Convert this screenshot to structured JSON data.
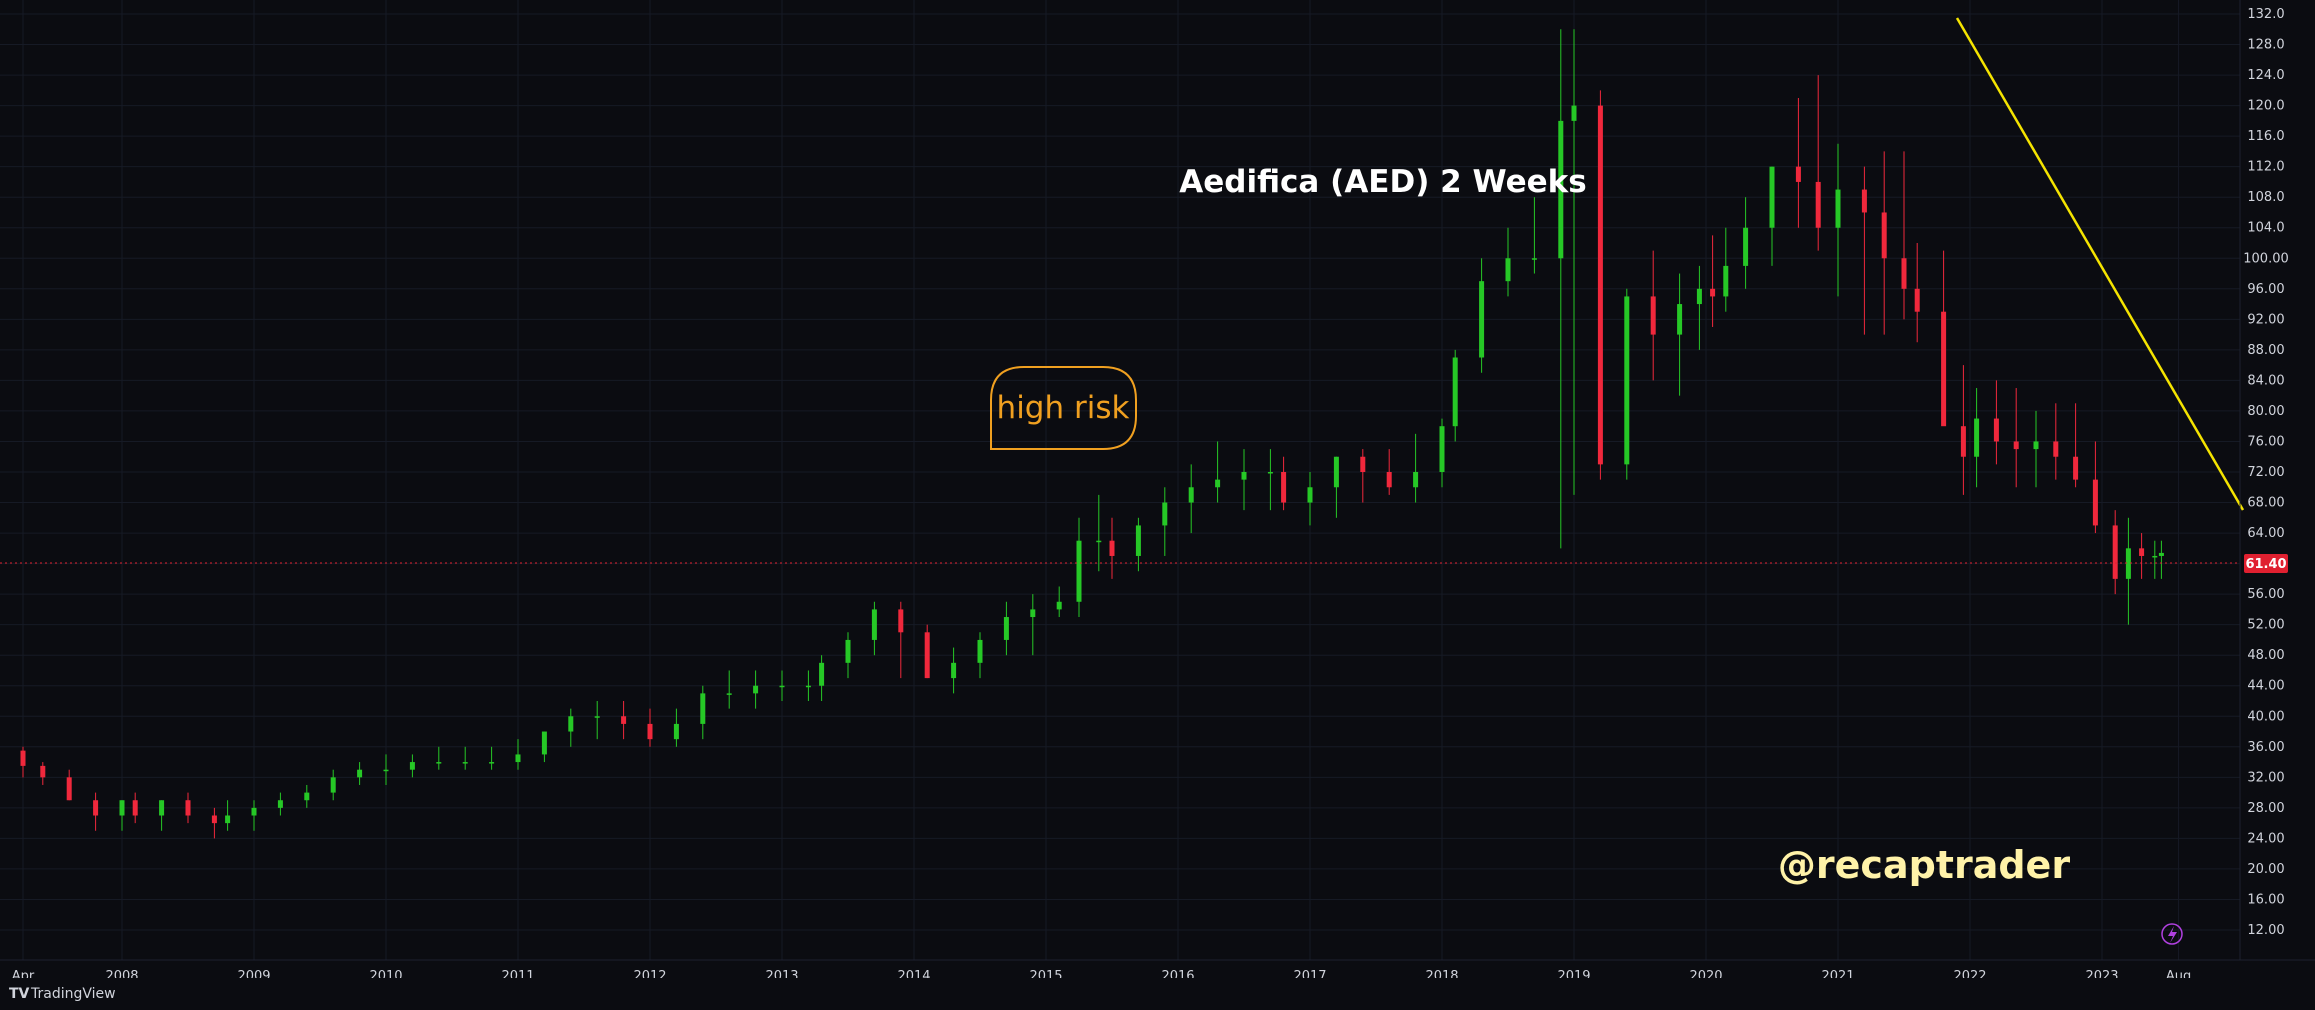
{
  "chart_data": {
    "type": "candlestick",
    "title": "Aedifica (AED) 2 Weeks",
    "ylim": [
      12,
      132
    ],
    "y_ticks": [
      "132.0",
      "128.0",
      "124.0",
      "120.0",
      "116.0",
      "112.0",
      "108.0",
      "104.0",
      "100.00",
      "96.00",
      "92.00",
      "88.00",
      "84.00",
      "80.00",
      "76.00",
      "72.00",
      "68.00",
      "64.00",
      "60.00",
      "56.00",
      "52.00",
      "48.00",
      "44.00",
      "40.00",
      "36.00",
      "32.00",
      "28.00",
      "24.00",
      "20.00",
      "16.00",
      "12.00"
    ],
    "x_ticks": [
      {
        "label": "Apr",
        "year": 2007.25
      },
      {
        "label": "2008",
        "year": 2008
      },
      {
        "label": "2009",
        "year": 2009
      },
      {
        "label": "2010",
        "year": 2010
      },
      {
        "label": "2011",
        "year": 2011
      },
      {
        "label": "2012",
        "year": 2012
      },
      {
        "label": "2013",
        "year": 2013
      },
      {
        "label": "2014",
        "year": 2014
      },
      {
        "label": "2015",
        "year": 2015
      },
      {
        "label": "2016",
        "year": 2016
      },
      {
        "label": "2017",
        "year": 2017
      },
      {
        "label": "2018",
        "year": 2018
      },
      {
        "label": "2019",
        "year": 2019
      },
      {
        "label": "2020",
        "year": 2020
      },
      {
        "label": "2021",
        "year": 2021
      },
      {
        "label": "2022",
        "year": 2022
      },
      {
        "label": "2023",
        "year": 2023
      },
      {
        "label": "Aug",
        "year": 2023.58
      }
    ],
    "series": [
      {
        "x": [
          2007.25,
          2007.4,
          2007.6,
          2007.8,
          2008.0,
          2008.1,
          2008.3,
          2008.5,
          2008.7,
          2008.8,
          2009.0,
          2009.2,
          2009.4,
          2009.6,
          2009.8,
          2010.0,
          2010.2,
          2010.4,
          2010.6,
          2010.8,
          2011.0,
          2011.2,
          2011.4,
          2011.6,
          2011.8,
          2012.0,
          2012.2,
          2012.4,
          2012.6,
          2012.8,
          2013.0,
          2013.2,
          2013.3,
          2013.5,
          2013.7,
          2013.9,
          2014.1,
          2014.3,
          2014.5,
          2014.7,
          2014.9,
          2015.1,
          2015.25,
          2015.4,
          2015.5,
          2015.7,
          2015.9,
          2016.1,
          2016.3,
          2016.5,
          2016.7,
          2016.8,
          2017.0,
          2017.2,
          2017.4,
          2017.6,
          2017.8,
          2018.0,
          2018.1,
          2018.3,
          2018.5,
          2018.7,
          2018.9,
          2019.0,
          2019.2,
          2019.4,
          2019.6,
          2019.8,
          2019.95,
          2020.05,
          2020.15,
          2020.3,
          2020.5,
          2020.7,
          2020.85,
          2021.0,
          2021.2,
          2021.35,
          2021.5,
          2021.6,
          2021.8,
          2021.95,
          2022.05,
          2022.2,
          2022.35,
          2022.5,
          2022.65,
          2022.8,
          2022.95,
          2023.1,
          2023.2,
          2023.3,
          2023.4,
          2023.45
        ],
        "open": [
          35.5,
          33.5,
          32,
          29,
          27,
          29,
          27,
          29,
          27,
          26,
          27,
          28,
          29,
          30,
          32,
          33,
          33,
          34,
          34,
          34,
          34,
          35,
          38,
          40,
          40,
          39,
          37,
          39,
          43,
          43,
          44,
          44,
          44,
          47,
          50,
          54,
          51,
          45,
          47,
          50,
          53,
          54,
          55,
          63,
          63,
          61,
          65,
          68,
          70,
          71,
          72,
          72,
          68,
          70,
          74,
          72,
          70,
          72,
          78,
          87,
          97,
          100,
          100,
          118,
          120,
          73,
          95,
          90,
          94,
          96,
          95,
          99,
          104,
          112,
          110,
          104,
          109,
          106,
          100,
          96,
          93,
          78,
          74,
          79,
          76,
          75,
          76,
          74,
          71,
          65,
          58,
          62,
          61,
          61
        ],
        "high": [
          36,
          34,
          33,
          30,
          29,
          30,
          29,
          30,
          28,
          29,
          29,
          30,
          31,
          33,
          34,
          35,
          35,
          36,
          36,
          36,
          37,
          38,
          41,
          42,
          42,
          41,
          41,
          44,
          46,
          46,
          46,
          46,
          48,
          51,
          55,
          55,
          52,
          49,
          51,
          55,
          56,
          57,
          66,
          69,
          66,
          66,
          70,
          73,
          76,
          75,
          75,
          74,
          72,
          74,
          75,
          75,
          77,
          79,
          88,
          100,
          104,
          108,
          130,
          130,
          122,
          96,
          101,
          98,
          99,
          103,
          104,
          108,
          112,
          121,
          124,
          115,
          112,
          114,
          114,
          102,
          101,
          86,
          83,
          84,
          83,
          80,
          81,
          81,
          76,
          67,
          66,
          64,
          63,
          63
        ],
        "low": [
          32,
          31,
          29,
          25,
          25,
          26,
          25,
          26,
          24,
          25,
          25,
          27,
          28,
          29,
          31,
          31,
          32,
          33,
          33,
          33,
          33,
          34,
          36,
          37,
          37,
          36,
          36,
          37,
          41,
          41,
          42,
          42,
          42,
          45,
          48,
          45,
          45,
          43,
          45,
          48,
          48,
          53,
          53,
          59,
          58,
          59,
          61,
          64,
          68,
          67,
          67,
          67,
          65,
          66,
          68,
          69,
          68,
          70,
          76,
          85,
          95,
          98,
          62,
          69,
          71,
          71,
          84,
          82,
          88,
          91,
          93,
          96,
          99,
          104,
          101,
          95,
          90,
          90,
          92,
          89,
          79,
          69,
          70,
          73,
          70,
          70,
          71,
          70,
          64,
          56,
          52,
          58,
          58,
          58
        ],
        "close": [
          33.5,
          32,
          29,
          27,
          29,
          27,
          29,
          27,
          26,
          27,
          28,
          29,
          30,
          32,
          33,
          33,
          34,
          34,
          34,
          34,
          35,
          38,
          40,
          40,
          39,
          37,
          39,
          43,
          43,
          44,
          44,
          44,
          47,
          50,
          54,
          51,
          45,
          47,
          50,
          53,
          54,
          55,
          63,
          63,
          61,
          65,
          68,
          70,
          71,
          72,
          72,
          68,
          70,
          74,
          72,
          70,
          72,
          78,
          87,
          97,
          100,
          100,
          118,
          120,
          73,
          95,
          90,
          94,
          96,
          95,
          99,
          104,
          112,
          110,
          104,
          109,
          106,
          100,
          96,
          93,
          78,
          74,
          79,
          76,
          75,
          76,
          74,
          71,
          65,
          58,
          62,
          61,
          61,
          61.4
        ]
      }
    ],
    "current_price": "61.40",
    "annotations": {
      "note": "high risk",
      "watermark": "@recaptrader"
    },
    "colors": {
      "up": "#26c826",
      "down": "#f0283c",
      "trendline": "#f5e400",
      "note": "#f0a020",
      "price_line": "#e02030",
      "background": "#0b0c11"
    }
  },
  "footer": {
    "brand": "TradingView"
  }
}
